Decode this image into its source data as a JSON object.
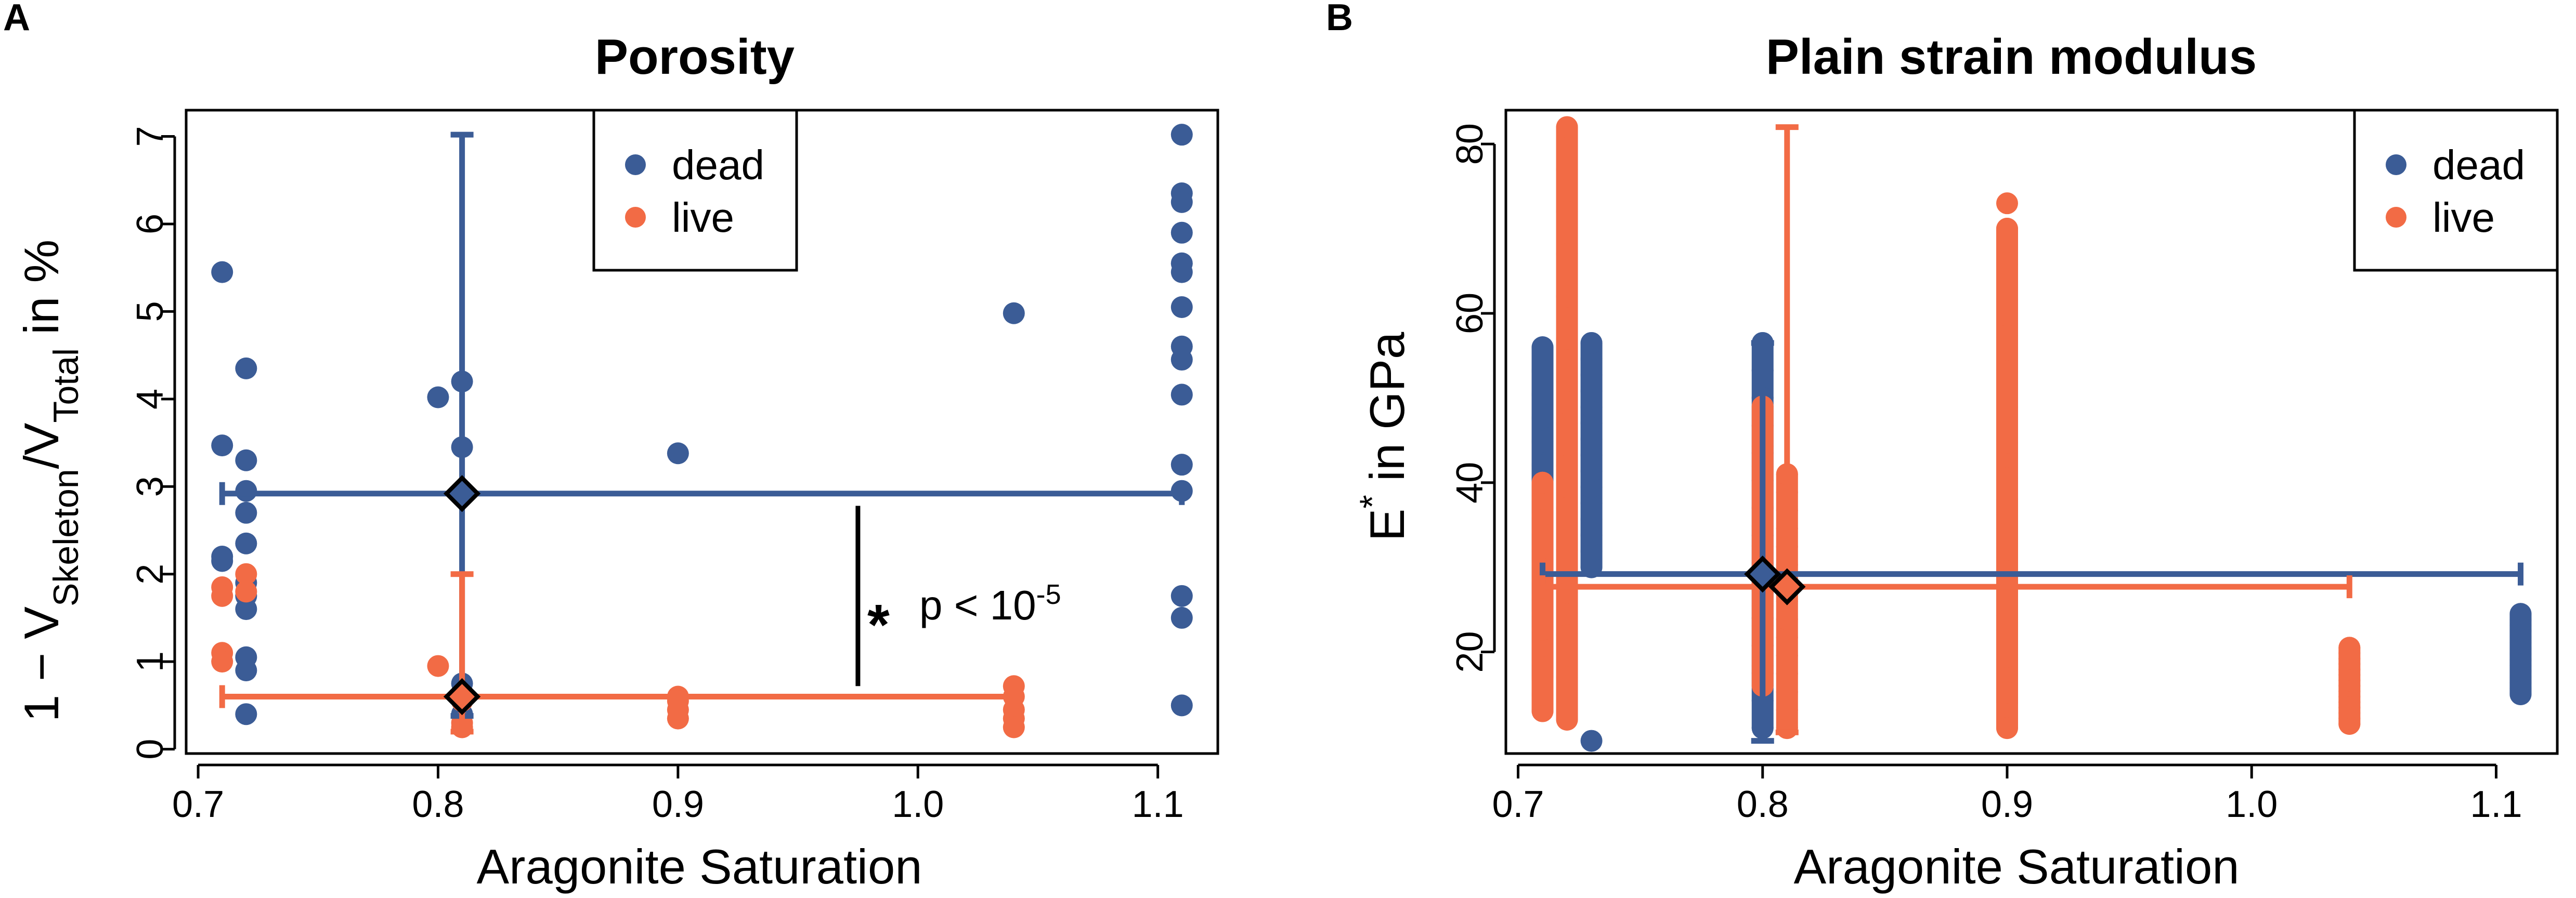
{
  "colors": {
    "dead": "#3B5C96",
    "live": "#F26B45",
    "axis": "#000000"
  },
  "panels": {
    "a": "A",
    "b": "B"
  },
  "legend": {
    "dead": "dead",
    "live": "live"
  },
  "annotation": {
    "star": "*",
    "text": "p < 10",
    "exp": "-5"
  },
  "chart_data": [
    {
      "type": "scatter",
      "title": "Porosity",
      "xlabel": "Aragonite Saturation",
      "ylabel": "1 − V",
      "ylabel_parts": {
        "pre": "1 − V",
        "sub1": "Skeleton",
        "mid": "/V",
        "sub2": "Total",
        "post": " in %"
      },
      "xlim": [
        0.695,
        1.125
      ],
      "ylim": [
        -0.05,
        7.3
      ],
      "xticks": [
        0.7,
        0.8,
        0.9,
        1.0,
        1.1
      ],
      "xtick_labels": [
        "0.7",
        "0.8",
        "0.9",
        "1.0",
        "1.1"
      ],
      "yticks": [
        0,
        1,
        2,
        3,
        4,
        5,
        6,
        7
      ],
      "ytick_labels": [
        "0",
        "1",
        "2",
        "3",
        "4",
        "5",
        "6",
        "7"
      ],
      "series": [
        {
          "name": "dead",
          "points": [
            [
              0.71,
              5.45
            ],
            [
              0.71,
              3.47
            ],
            [
              0.71,
              2.2
            ],
            [
              0.71,
              2.15
            ],
            [
              0.72,
              4.35
            ],
            [
              0.72,
              3.3
            ],
            [
              0.72,
              2.95
            ],
            [
              0.72,
              2.7
            ],
            [
              0.72,
              2.35
            ],
            [
              0.72,
              1.9
            ],
            [
              0.72,
              1.75
            ],
            [
              0.72,
              1.6
            ],
            [
              0.72,
              1.05
            ],
            [
              0.72,
              0.9
            ],
            [
              0.72,
              0.4
            ],
            [
              0.8,
              4.02
            ],
            [
              0.81,
              4.2
            ],
            [
              0.81,
              3.45
            ],
            [
              0.81,
              0.75
            ],
            [
              0.81,
              0.4
            ],
            [
              0.9,
              3.38
            ],
            [
              1.04,
              4.98
            ],
            [
              1.11,
              7.02
            ],
            [
              1.11,
              6.35
            ],
            [
              1.11,
              6.25
            ],
            [
              1.11,
              5.9
            ],
            [
              1.11,
              5.55
            ],
            [
              1.11,
              5.45
            ],
            [
              1.11,
              5.05
            ],
            [
              1.11,
              4.6
            ],
            [
              1.11,
              4.45
            ],
            [
              1.11,
              4.05
            ],
            [
              1.11,
              3.25
            ],
            [
              1.11,
              2.95
            ],
            [
              1.11,
              1.75
            ],
            [
              1.11,
              1.5
            ],
            [
              1.11,
              0.5
            ]
          ],
          "mean": [
            0.81,
            2.92
          ],
          "x_range": [
            0.71,
            1.11
          ],
          "y_range": [
            0.38,
            7.02
          ]
        },
        {
          "name": "live",
          "points": [
            [
              0.71,
              1.85
            ],
            [
              0.71,
              1.75
            ],
            [
              0.71,
              1.1
            ],
            [
              0.71,
              1.0
            ],
            [
              0.72,
              2.0
            ],
            [
              0.72,
              1.8
            ],
            [
              0.8,
              0.95
            ],
            [
              0.81,
              0.55
            ],
            [
              0.81,
              0.3
            ],
            [
              0.81,
              0.25
            ],
            [
              0.9,
              0.6
            ],
            [
              0.9,
              0.55
            ],
            [
              0.9,
              0.45
            ],
            [
              0.9,
              0.35
            ],
            [
              1.04,
              0.72
            ],
            [
              1.04,
              0.6
            ],
            [
              1.04,
              0.45
            ],
            [
              1.04,
              0.35
            ],
            [
              1.04,
              0.25
            ]
          ],
          "mean": [
            0.81,
            0.6
          ],
          "x_range": [
            0.71,
            1.04
          ],
          "y_range": [
            0.2,
            2.0
          ]
        }
      ],
      "significance": {
        "x": 0.975,
        "y_from": 0.72,
        "y_to": 2.78
      }
    },
    {
      "type": "scatter",
      "title": "Plain strain modulus",
      "xlabel": "Aragonite Saturation",
      "ylabel": "E",
      "ylabel_parts": {
        "pre": "E",
        "sup": "*",
        "post": " in GPa"
      },
      "xlim": [
        0.695,
        1.125
      ],
      "ylim": [
        8,
        84
      ],
      "xticks": [
        0.7,
        0.8,
        0.9,
        1.0,
        1.1
      ],
      "xtick_labels": [
        "0.7",
        "0.8",
        "0.9",
        "1.0",
        "1.1"
      ],
      "yticks": [
        20,
        40,
        60,
        80
      ],
      "ytick_labels": [
        "20",
        "40",
        "60",
        "80"
      ],
      "series": [
        {
          "name": "dead",
          "columns": [
            {
              "x": 0.71,
              "y_min": 17,
              "y_max": 56
            },
            {
              "x": 0.73,
              "y_min": 30,
              "y_max": 56.5
            },
            {
              "x": 0.8,
              "y_min": 11,
              "y_max": 56.5
            },
            {
              "x": 0.9,
              "y_min": 14,
              "y_max": 38
            },
            {
              "x": 1.11,
              "y_min": 15,
              "y_max": 24.5
            }
          ],
          "extra_points": [
            [
              0.73,
              9.5
            ]
          ],
          "mean": [
            0.8,
            29.2
          ],
          "x_range": [
            0.71,
            1.11
          ],
          "y_range": [
            9.5,
            56.5
          ]
        },
        {
          "name": "live",
          "columns": [
            {
              "x": 0.71,
              "y_min": 13,
              "y_max": 40
            },
            {
              "x": 0.72,
              "y_min": 12,
              "y_max": 82
            },
            {
              "x": 0.8,
              "y_min": 16,
              "y_max": 49
            },
            {
              "x": 0.81,
              "y_min": 11,
              "y_max": 41
            },
            {
              "x": 0.9,
              "y_min": 11,
              "y_max": 70
            },
            {
              "x": 1.04,
              "y_min": 11.5,
              "y_max": 20.5
            }
          ],
          "extra_points": [
            [
              0.9,
              73
            ]
          ],
          "mean": [
            0.81,
            27.7
          ],
          "x_range": [
            0.71,
            1.04
          ],
          "y_range": [
            10.5,
            82
          ]
        }
      ]
    }
  ]
}
